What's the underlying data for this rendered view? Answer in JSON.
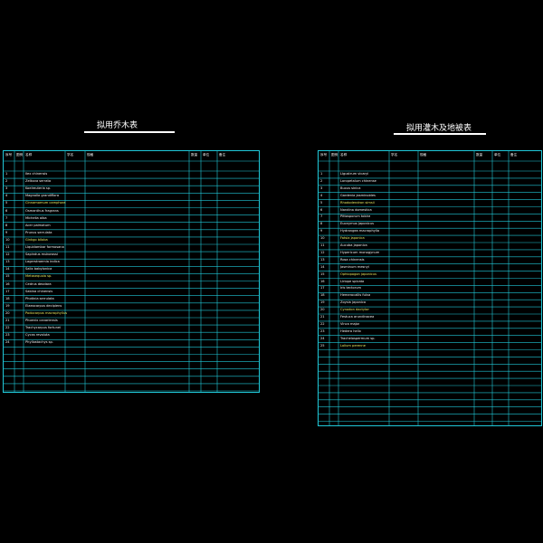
{
  "left_title": "拟用乔木表",
  "right_title": "拟用灌木及地被表",
  "colors": {
    "background": "#000000",
    "frame": "#20c8d8",
    "text": "#ffffff",
    "highlight": "#e8e860"
  },
  "left_table": {
    "headers": [
      "序号",
      "图例",
      "名称",
      "学名",
      "规格",
      "数量",
      "单位",
      "备注"
    ],
    "rows": [
      [
        "1",
        "Ilex chinensis"
      ],
      [
        "2",
        "Zelkova serrata"
      ],
      [
        "3",
        "Koelreuteria sp."
      ],
      [
        "4",
        "Magnolia grandiflora"
      ],
      [
        "5",
        "Cinnamomum camphora"
      ],
      [
        "6",
        "Osmanthus fragrans"
      ],
      [
        "7",
        "Michelia alba"
      ],
      [
        "8",
        "Acer palmatum"
      ],
      [
        "9",
        "Prunus serrulata"
      ],
      [
        "10",
        "Ginkgo biloba"
      ],
      [
        "11",
        "Liquidambar formosana"
      ],
      [
        "12",
        "Sapindus mukorossi"
      ],
      [
        "13",
        "Lagerstroemia indica"
      ],
      [
        "14",
        "Salix babylonica"
      ],
      [
        "15",
        "Metasequoia sp."
      ],
      [
        "16",
        "Cedrus deodara"
      ],
      [
        "17",
        "Sabina chinensis"
      ],
      [
        "18",
        "Photinia serrulata"
      ],
      [
        "19",
        "Elaeocarpus decipiens"
      ],
      [
        "20",
        "Podocarpus macrophyllus"
      ],
      [
        "21",
        "Phoenix canariensis"
      ],
      [
        "22",
        "Trachycarpus fortunei"
      ],
      [
        "23",
        "Cycas revoluta"
      ],
      [
        "24",
        "Phyllostachys sp."
      ]
    ]
  },
  "right_table": {
    "headers": [
      "序号",
      "图例",
      "名称",
      "学名",
      "规格",
      "数量",
      "单位",
      "备注"
    ],
    "rows": [
      [
        "1",
        "Ligustrum vicaryi"
      ],
      [
        "2",
        "Loropetalum chinense"
      ],
      [
        "3",
        "Buxus sinica"
      ],
      [
        "4",
        "Gardenia jasminoides"
      ],
      [
        "5",
        "Rhododendron simsii"
      ],
      [
        "6",
        "Nandina domestica"
      ],
      [
        "7",
        "Pittosporum tobira"
      ],
      [
        "8",
        "Euonymus japonicus"
      ],
      [
        "9",
        "Hydrangea macrophylla"
      ],
      [
        "10",
        "Fatsia japonica"
      ],
      [
        "11",
        "Aucuba japonica"
      ],
      [
        "12",
        "Hypericum monogynum"
      ],
      [
        "13",
        "Rosa chinensis"
      ],
      [
        "14",
        "Jasminum mesnyi"
      ],
      [
        "15",
        "Ophiopogon japonicus"
      ],
      [
        "16",
        "Liriope spicata"
      ],
      [
        "17",
        "Iris tectorum"
      ],
      [
        "18",
        "Hemerocallis fulva"
      ],
      [
        "19",
        "Zoysia japonica"
      ],
      [
        "20",
        "Cynodon dactylon"
      ],
      [
        "21",
        "Festuca arundinacea"
      ],
      [
        "22",
        "Vinca major"
      ],
      [
        "23",
        "Hedera helix"
      ],
      [
        "24",
        "Trachelospermum sp."
      ],
      [
        "25",
        "Lolium perenne"
      ]
    ]
  }
}
